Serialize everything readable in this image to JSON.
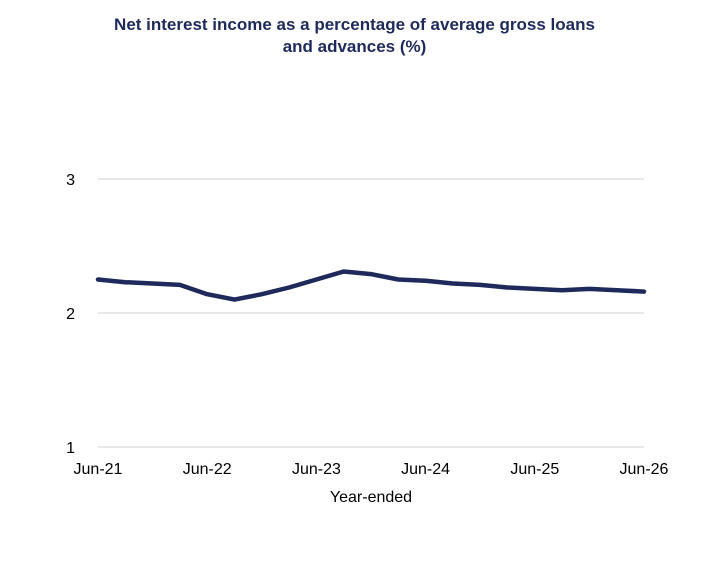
{
  "chart_data": {
    "type": "line",
    "title_lines": [
      "Net interest income as a percentage of average gross loans",
      "and advances (%)"
    ],
    "xlabel": "Year-ended",
    "ylabel": "",
    "ylim": [
      1,
      3
    ],
    "yticks": [
      "1",
      "2",
      "3"
    ],
    "xtick_labels": [
      "Jun-21",
      "Jun-22",
      "Jun-23",
      "Jun-24",
      "Jun-25",
      "Jun-26"
    ],
    "grid": true,
    "line_color": "#1f2a5c",
    "x": [
      "Jun-21",
      "Sep-21",
      "Dec-21",
      "Mar-22",
      "Jun-22",
      "Sep-22",
      "Dec-22",
      "Mar-23",
      "Jun-23",
      "Sep-23",
      "Dec-23",
      "Mar-24",
      "Jun-24",
      "Sep-24",
      "Dec-24",
      "Mar-25",
      "Jun-25",
      "Sep-25",
      "Dec-25",
      "Mar-26",
      "Jun-26"
    ],
    "series": [
      {
        "values": [
          2.25,
          2.23,
          2.22,
          2.21,
          2.14,
          2.1,
          2.14,
          2.19,
          2.25,
          2.31,
          2.29,
          2.25,
          2.24,
          2.22,
          2.21,
          2.19,
          2.18,
          2.17,
          2.18,
          2.17,
          2.16
        ]
      }
    ]
  }
}
